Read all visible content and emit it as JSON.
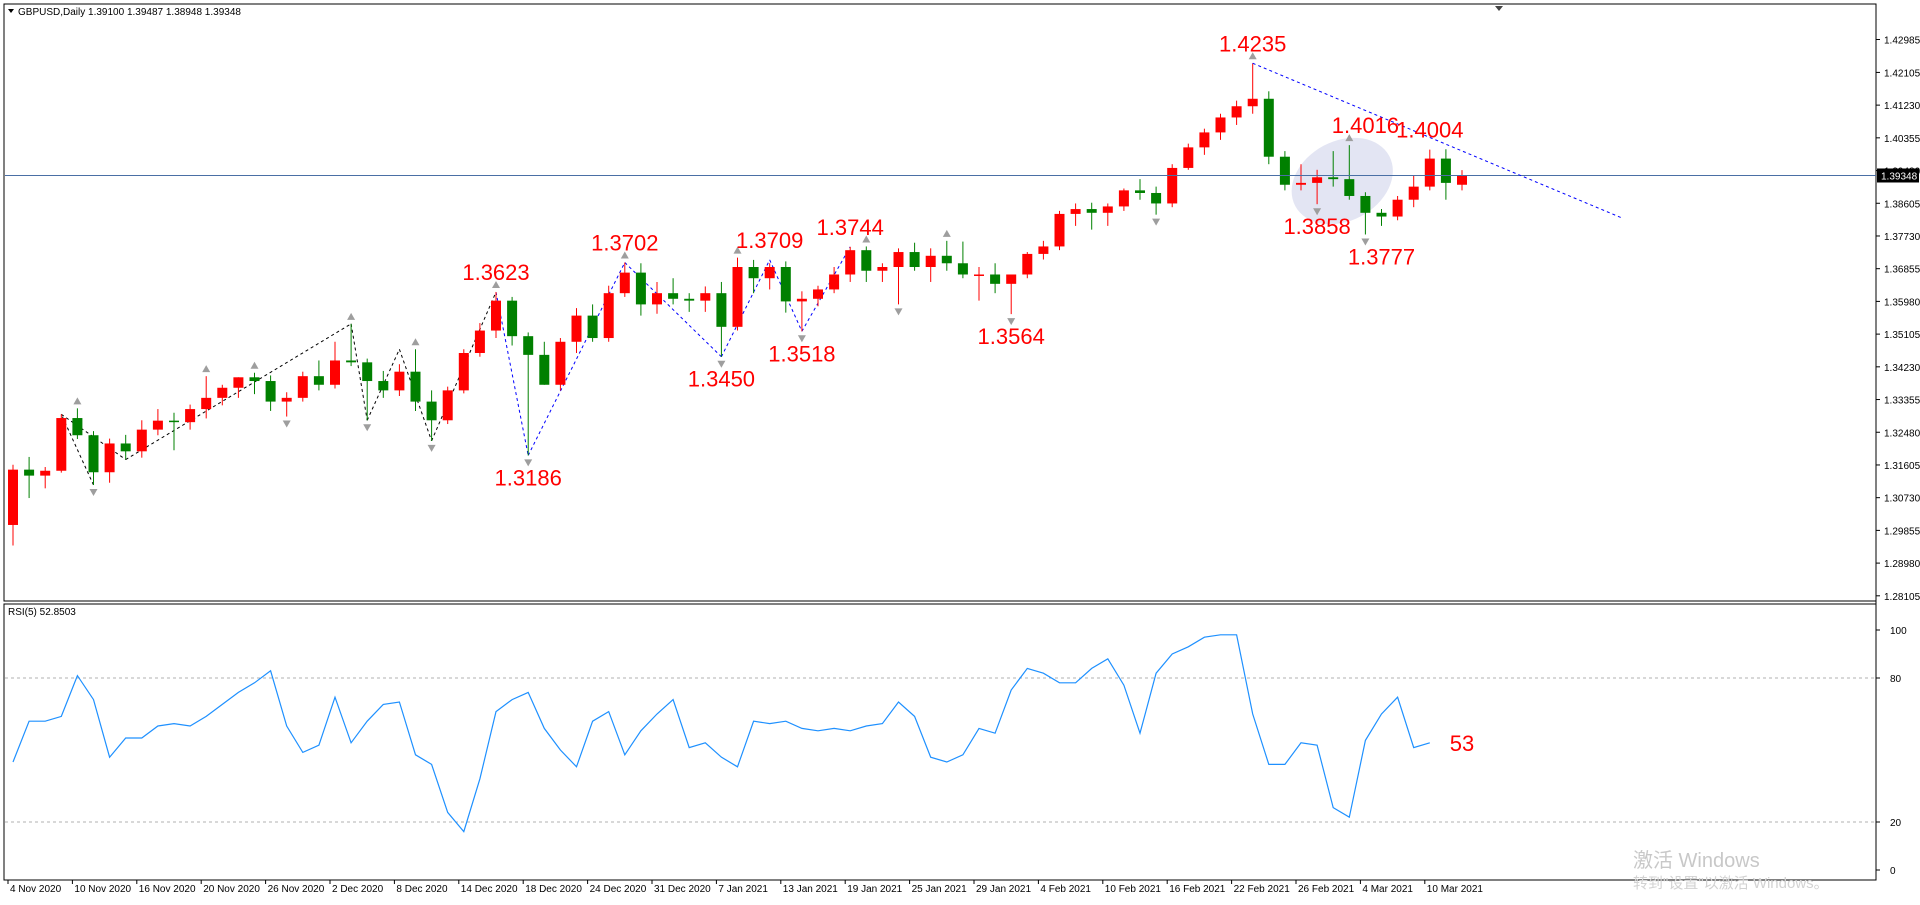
{
  "header": {
    "symbol_line": "GBPUSD,Daily  1.39100 1.39487 1.38948 1.39348",
    "menu_icon": "triangle-down-icon"
  },
  "colors": {
    "bull_candle": "#ff0000",
    "bear_candle": "#008000",
    "current_price_line": "#4a6fa5",
    "current_price_tag_bg": "#000000",
    "trendline": "#0000ff",
    "zigzag": "#000000",
    "rsi_line": "#1e90ff",
    "annotation_text": "#ff0000",
    "fractal_marker": "#9e9e9e",
    "highlight_ellipse": "#d9dcef"
  },
  "chart_data": [
    {
      "type": "candlestick",
      "title": "GBPUSD,Daily",
      "ohlc_summary": {
        "open": 1.391,
        "high": 1.39487,
        "low": 1.38948,
        "close": 1.39348
      },
      "x_labels": [
        "4 Nov 2020",
        "10 Nov 2020",
        "16 Nov 2020",
        "20 Nov 2020",
        "26 Nov 2020",
        "2 Dec 2020",
        "8 Dec 2020",
        "14 Dec 2020",
        "18 Dec 2020",
        "24 Dec 2020",
        "31 Dec 2020",
        "7 Jan 2021",
        "13 Jan 2021",
        "19 Jan 2021",
        "25 Jan 2021",
        "29 Jan 2021",
        "4 Feb 2021",
        "10 Feb 2021",
        "16 Feb 2021",
        "22 Feb 2021",
        "26 Feb 2021",
        "4 Mar 2021",
        "10 Mar 2021"
      ],
      "y_ticks": [
        "1.42985",
        "1.42105",
        "1.41230",
        "1.40355",
        "1.39480",
        "1.38605",
        "1.37730",
        "1.36855",
        "1.35980",
        "1.35105",
        "1.34230",
        "1.33355",
        "1.32480",
        "1.31605",
        "1.30730",
        "1.29855",
        "1.28980",
        "1.28105"
      ],
      "ylim": [
        1.281,
        1.434
      ],
      "current_price": "1.39348",
      "candles": [
        {
          "o": 1.3,
          "h": 1.3161,
          "l": 1.2945,
          "c": 1.3148
        },
        {
          "o": 1.3148,
          "h": 1.3182,
          "l": 1.3072,
          "c": 1.3132
        },
        {
          "o": 1.3132,
          "h": 1.3155,
          "l": 1.3098,
          "c": 1.3145
        },
        {
          "o": 1.3145,
          "h": 1.3296,
          "l": 1.314,
          "c": 1.3286
        },
        {
          "o": 1.3286,
          "h": 1.3312,
          "l": 1.323,
          "c": 1.324
        },
        {
          "o": 1.324,
          "h": 1.3251,
          "l": 1.3107,
          "c": 1.3141
        },
        {
          "o": 1.3141,
          "h": 1.3231,
          "l": 1.3113,
          "c": 1.3218
        },
        {
          "o": 1.3218,
          "h": 1.3241,
          "l": 1.3175,
          "c": 1.3197
        },
        {
          "o": 1.3197,
          "h": 1.328,
          "l": 1.318,
          "c": 1.3255
        },
        {
          "o": 1.3255,
          "h": 1.331,
          "l": 1.324,
          "c": 1.3279
        },
        {
          "o": 1.3279,
          "h": 1.33,
          "l": 1.32,
          "c": 1.3275
        },
        {
          "o": 1.3275,
          "h": 1.3322,
          "l": 1.3255,
          "c": 1.331
        },
        {
          "o": 1.331,
          "h": 1.3398,
          "l": 1.3285,
          "c": 1.334
        },
        {
          "o": 1.334,
          "h": 1.3375,
          "l": 1.332,
          "c": 1.3367
        },
        {
          "o": 1.3367,
          "h": 1.3395,
          "l": 1.334,
          "c": 1.3395
        },
        {
          "o": 1.3395,
          "h": 1.3407,
          "l": 1.335,
          "c": 1.3385
        },
        {
          "o": 1.3385,
          "h": 1.34,
          "l": 1.3305,
          "c": 1.333
        },
        {
          "o": 1.333,
          "h": 1.3355,
          "l": 1.329,
          "c": 1.334
        },
        {
          "o": 1.334,
          "h": 1.341,
          "l": 1.333,
          "c": 1.3398
        },
        {
          "o": 1.3398,
          "h": 1.344,
          "l": 1.336,
          "c": 1.3375
        },
        {
          "o": 1.3375,
          "h": 1.349,
          "l": 1.3365,
          "c": 1.344
        },
        {
          "o": 1.344,
          "h": 1.3538,
          "l": 1.3425,
          "c": 1.3435
        },
        {
          "o": 1.3435,
          "h": 1.3445,
          "l": 1.328,
          "c": 1.3385
        },
        {
          "o": 1.3385,
          "h": 1.3412,
          "l": 1.334,
          "c": 1.336
        },
        {
          "o": 1.336,
          "h": 1.343,
          "l": 1.3345,
          "c": 1.341
        },
        {
          "o": 1.341,
          "h": 1.347,
          "l": 1.3305,
          "c": 1.333
        },
        {
          "o": 1.333,
          "h": 1.336,
          "l": 1.3225,
          "c": 1.328
        },
        {
          "o": 1.328,
          "h": 1.337,
          "l": 1.327,
          "c": 1.336
        },
        {
          "o": 1.336,
          "h": 1.347,
          "l": 1.3352,
          "c": 1.346
        },
        {
          "o": 1.346,
          "h": 1.354,
          "l": 1.345,
          "c": 1.352
        },
        {
          "o": 1.352,
          "h": 1.3623,
          "l": 1.35,
          "c": 1.36
        },
        {
          "o": 1.36,
          "h": 1.361,
          "l": 1.348,
          "c": 1.3505
        },
        {
          "o": 1.3505,
          "h": 1.3515,
          "l": 1.3186,
          "c": 1.3455
        },
        {
          "o": 1.3455,
          "h": 1.349,
          "l": 1.3375,
          "c": 1.3375
        },
        {
          "o": 1.3375,
          "h": 1.35,
          "l": 1.336,
          "c": 1.349
        },
        {
          "o": 1.349,
          "h": 1.358,
          "l": 1.346,
          "c": 1.356
        },
        {
          "o": 1.356,
          "h": 1.359,
          "l": 1.349,
          "c": 1.35
        },
        {
          "o": 1.35,
          "h": 1.364,
          "l": 1.349,
          "c": 1.362
        },
        {
          "o": 1.362,
          "h": 1.3702,
          "l": 1.361,
          "c": 1.3675
        },
        {
          "o": 1.3675,
          "h": 1.37,
          "l": 1.356,
          "c": 1.359
        },
        {
          "o": 1.359,
          "h": 1.365,
          "l": 1.3565,
          "c": 1.362
        },
        {
          "o": 1.362,
          "h": 1.366,
          "l": 1.359,
          "c": 1.3605
        },
        {
          "o": 1.3605,
          "h": 1.362,
          "l": 1.357,
          "c": 1.36
        },
        {
          "o": 1.36,
          "h": 1.3638,
          "l": 1.357,
          "c": 1.362
        },
        {
          "o": 1.362,
          "h": 1.365,
          "l": 1.345,
          "c": 1.353
        },
        {
          "o": 1.353,
          "h": 1.3715,
          "l": 1.352,
          "c": 1.369
        },
        {
          "o": 1.369,
          "h": 1.3709,
          "l": 1.362,
          "c": 1.366
        },
        {
          "o": 1.366,
          "h": 1.37,
          "l": 1.363,
          "c": 1.369
        },
        {
          "o": 1.369,
          "h": 1.3705,
          "l": 1.3568,
          "c": 1.3598
        },
        {
          "o": 1.3598,
          "h": 1.3625,
          "l": 1.3518,
          "c": 1.3605
        },
        {
          "o": 1.3605,
          "h": 1.364,
          "l": 1.3585,
          "c": 1.363
        },
        {
          "o": 1.363,
          "h": 1.369,
          "l": 1.362,
          "c": 1.367
        },
        {
          "o": 1.367,
          "h": 1.3744,
          "l": 1.365,
          "c": 1.3735
        },
        {
          "o": 1.3735,
          "h": 1.3745,
          "l": 1.365,
          "c": 1.368
        },
        {
          "o": 1.368,
          "h": 1.37,
          "l": 1.365,
          "c": 1.369
        },
        {
          "o": 1.369,
          "h": 1.374,
          "l": 1.359,
          "c": 1.373
        },
        {
          "o": 1.373,
          "h": 1.3755,
          "l": 1.368,
          "c": 1.369
        },
        {
          "o": 1.369,
          "h": 1.374,
          "l": 1.365,
          "c": 1.372
        },
        {
          "o": 1.372,
          "h": 1.376,
          "l": 1.368,
          "c": 1.37
        },
        {
          "o": 1.37,
          "h": 1.3758,
          "l": 1.366,
          "c": 1.367
        },
        {
          "o": 1.367,
          "h": 1.369,
          "l": 1.36,
          "c": 1.367
        },
        {
          "o": 1.367,
          "h": 1.37,
          "l": 1.362,
          "c": 1.3645
        },
        {
          "o": 1.3645,
          "h": 1.3665,
          "l": 1.3564,
          "c": 1.367
        },
        {
          "o": 1.367,
          "h": 1.373,
          "l": 1.366,
          "c": 1.3725
        },
        {
          "o": 1.3725,
          "h": 1.376,
          "l": 1.371,
          "c": 1.3745
        },
        {
          "o": 1.3745,
          "h": 1.384,
          "l": 1.3735,
          "c": 1.3832
        },
        {
          "o": 1.3832,
          "h": 1.386,
          "l": 1.38,
          "c": 1.3845
        },
        {
          "o": 1.3845,
          "h": 1.3862,
          "l": 1.379,
          "c": 1.3835
        },
        {
          "o": 1.3835,
          "h": 1.386,
          "l": 1.38,
          "c": 1.3852
        },
        {
          "o": 1.3852,
          "h": 1.39,
          "l": 1.384,
          "c": 1.3895
        },
        {
          "o": 1.3895,
          "h": 1.3925,
          "l": 1.387,
          "c": 1.3888
        },
        {
          "o": 1.3888,
          "h": 1.3905,
          "l": 1.383,
          "c": 1.386
        },
        {
          "o": 1.386,
          "h": 1.3965,
          "l": 1.385,
          "c": 1.3955
        },
        {
          "o": 1.3955,
          "h": 1.402,
          "l": 1.395,
          "c": 1.401
        },
        {
          "o": 1.401,
          "h": 1.406,
          "l": 1.399,
          "c": 1.405
        },
        {
          "o": 1.405,
          "h": 1.41,
          "l": 1.403,
          "c": 1.409
        },
        {
          "o": 1.409,
          "h": 1.4135,
          "l": 1.407,
          "c": 1.412
        },
        {
          "o": 1.412,
          "h": 1.4235,
          "l": 1.41,
          "c": 1.414
        },
        {
          "o": 1.414,
          "h": 1.416,
          "l": 1.3965,
          "c": 1.3985
        },
        {
          "o": 1.3985,
          "h": 1.4,
          "l": 1.3895,
          "c": 1.391
        },
        {
          "o": 1.391,
          "h": 1.3965,
          "l": 1.3895,
          "c": 1.3915
        },
        {
          "o": 1.3915,
          "h": 1.395,
          "l": 1.3858,
          "c": 1.393
        },
        {
          "o": 1.393,
          "h": 1.4,
          "l": 1.3905,
          "c": 1.3925
        },
        {
          "o": 1.3925,
          "h": 1.4016,
          "l": 1.387,
          "c": 1.388
        },
        {
          "o": 1.388,
          "h": 1.389,
          "l": 1.3777,
          "c": 1.3835
        },
        {
          "o": 1.3835,
          "h": 1.3845,
          "l": 1.38,
          "c": 1.3825
        },
        {
          "o": 1.3825,
          "h": 1.388,
          "l": 1.3815,
          "c": 1.387
        },
        {
          "o": 1.387,
          "h": 1.3935,
          "l": 1.385,
          "c": 1.3905
        },
        {
          "o": 1.3905,
          "h": 1.4004,
          "l": 1.3895,
          "c": 1.398
        },
        {
          "o": 1.398,
          "h": 1.4005,
          "l": 1.387,
          "c": 1.3915
        },
        {
          "o": 1.391,
          "h": 1.3949,
          "l": 1.3895,
          "c": 1.3935
        }
      ],
      "annotations": [
        {
          "text": "1.4235",
          "candle": 77,
          "value": 1.4235,
          "pos": "above"
        },
        {
          "text": "1.4016",
          "candle": 84,
          "value": 1.4016,
          "pos": "above"
        },
        {
          "text": "1.4004",
          "candle": 88,
          "value": 1.4004,
          "pos": "above"
        },
        {
          "text": "1.3858",
          "candle": 81,
          "value": 1.3858,
          "pos": "below"
        },
        {
          "text": "1.3777",
          "candle": 85,
          "value": 1.3777,
          "pos": "below"
        },
        {
          "text": "1.3623",
          "candle": 30,
          "value": 1.3623,
          "pos": "above"
        },
        {
          "text": "1.3186",
          "candle": 32,
          "value": 1.3186,
          "pos": "below"
        },
        {
          "text": "1.3702",
          "candle": 38,
          "value": 1.3702,
          "pos": "above"
        },
        {
          "text": "1.3450",
          "candle": 44,
          "value": 1.345,
          "pos": "below"
        },
        {
          "text": "1.3709",
          "candle": 47,
          "value": 1.3709,
          "pos": "above"
        },
        {
          "text": "1.3518",
          "candle": 49,
          "value": 1.3518,
          "pos": "below"
        },
        {
          "text": "1.3744",
          "candle": 52,
          "value": 1.3744,
          "pos": "above"
        },
        {
          "text": "1.3564",
          "candle": 62,
          "value": 1.3564,
          "pos": "below"
        }
      ],
      "zigzag_points": [
        [
          5,
          1.3107
        ],
        [
          3,
          1.3296
        ],
        [
          7,
          1.3175
        ],
        [
          21,
          1.3538
        ],
        [
          22,
          1.328
        ],
        [
          24,
          1.347
        ],
        [
          26,
          1.3225
        ],
        [
          30,
          1.3623
        ],
        [
          32,
          1.3186
        ],
        [
          38,
          1.3702
        ],
        [
          44,
          1.345
        ],
        [
          47,
          1.3709
        ],
        [
          49,
          1.3518
        ],
        [
          52,
          1.3744
        ]
      ],
      "trendline": [
        [
          77,
          1.4235
        ],
        [
          100,
          1.382
        ]
      ],
      "highlight_ellipse": {
        "candle_from": 80,
        "candle_to": 85,
        "value_low": 1.384,
        "value_high": 1.4
      }
    },
    {
      "type": "line",
      "title": "RSI(5) 52.8503",
      "ylim": [
        0,
        100
      ],
      "y_ticks": [
        "100",
        "80",
        "20",
        "0"
      ],
      "levels": [
        80,
        20
      ],
      "last_label": "53",
      "values": [
        45,
        62,
        62,
        64,
        81,
        71,
        47,
        55,
        55,
        60,
        61,
        60,
        64,
        69,
        74,
        78,
        83,
        60,
        49,
        52,
        72,
        53,
        62,
        69,
        70,
        48,
        44,
        24,
        16,
        38,
        66,
        71,
        74,
        59,
        50,
        43,
        62,
        66,
        48,
        58,
        65,
        71,
        51,
        53,
        47,
        43,
        62,
        61,
        62,
        59,
        58,
        59,
        58,
        60,
        61,
        70,
        64,
        47,
        45,
        48,
        59,
        57,
        75,
        84,
        82,
        78,
        78,
        84,
        88,
        77,
        57,
        82,
        90,
        93,
        97,
        98,
        98,
        65,
        44,
        44,
        53,
        52,
        26,
        22,
        54,
        65,
        72,
        51,
        53
      ]
    }
  ],
  "watermark": {
    "line1": "激活 Windows",
    "line2": "转到\"设置\"以激活 Windows。"
  }
}
